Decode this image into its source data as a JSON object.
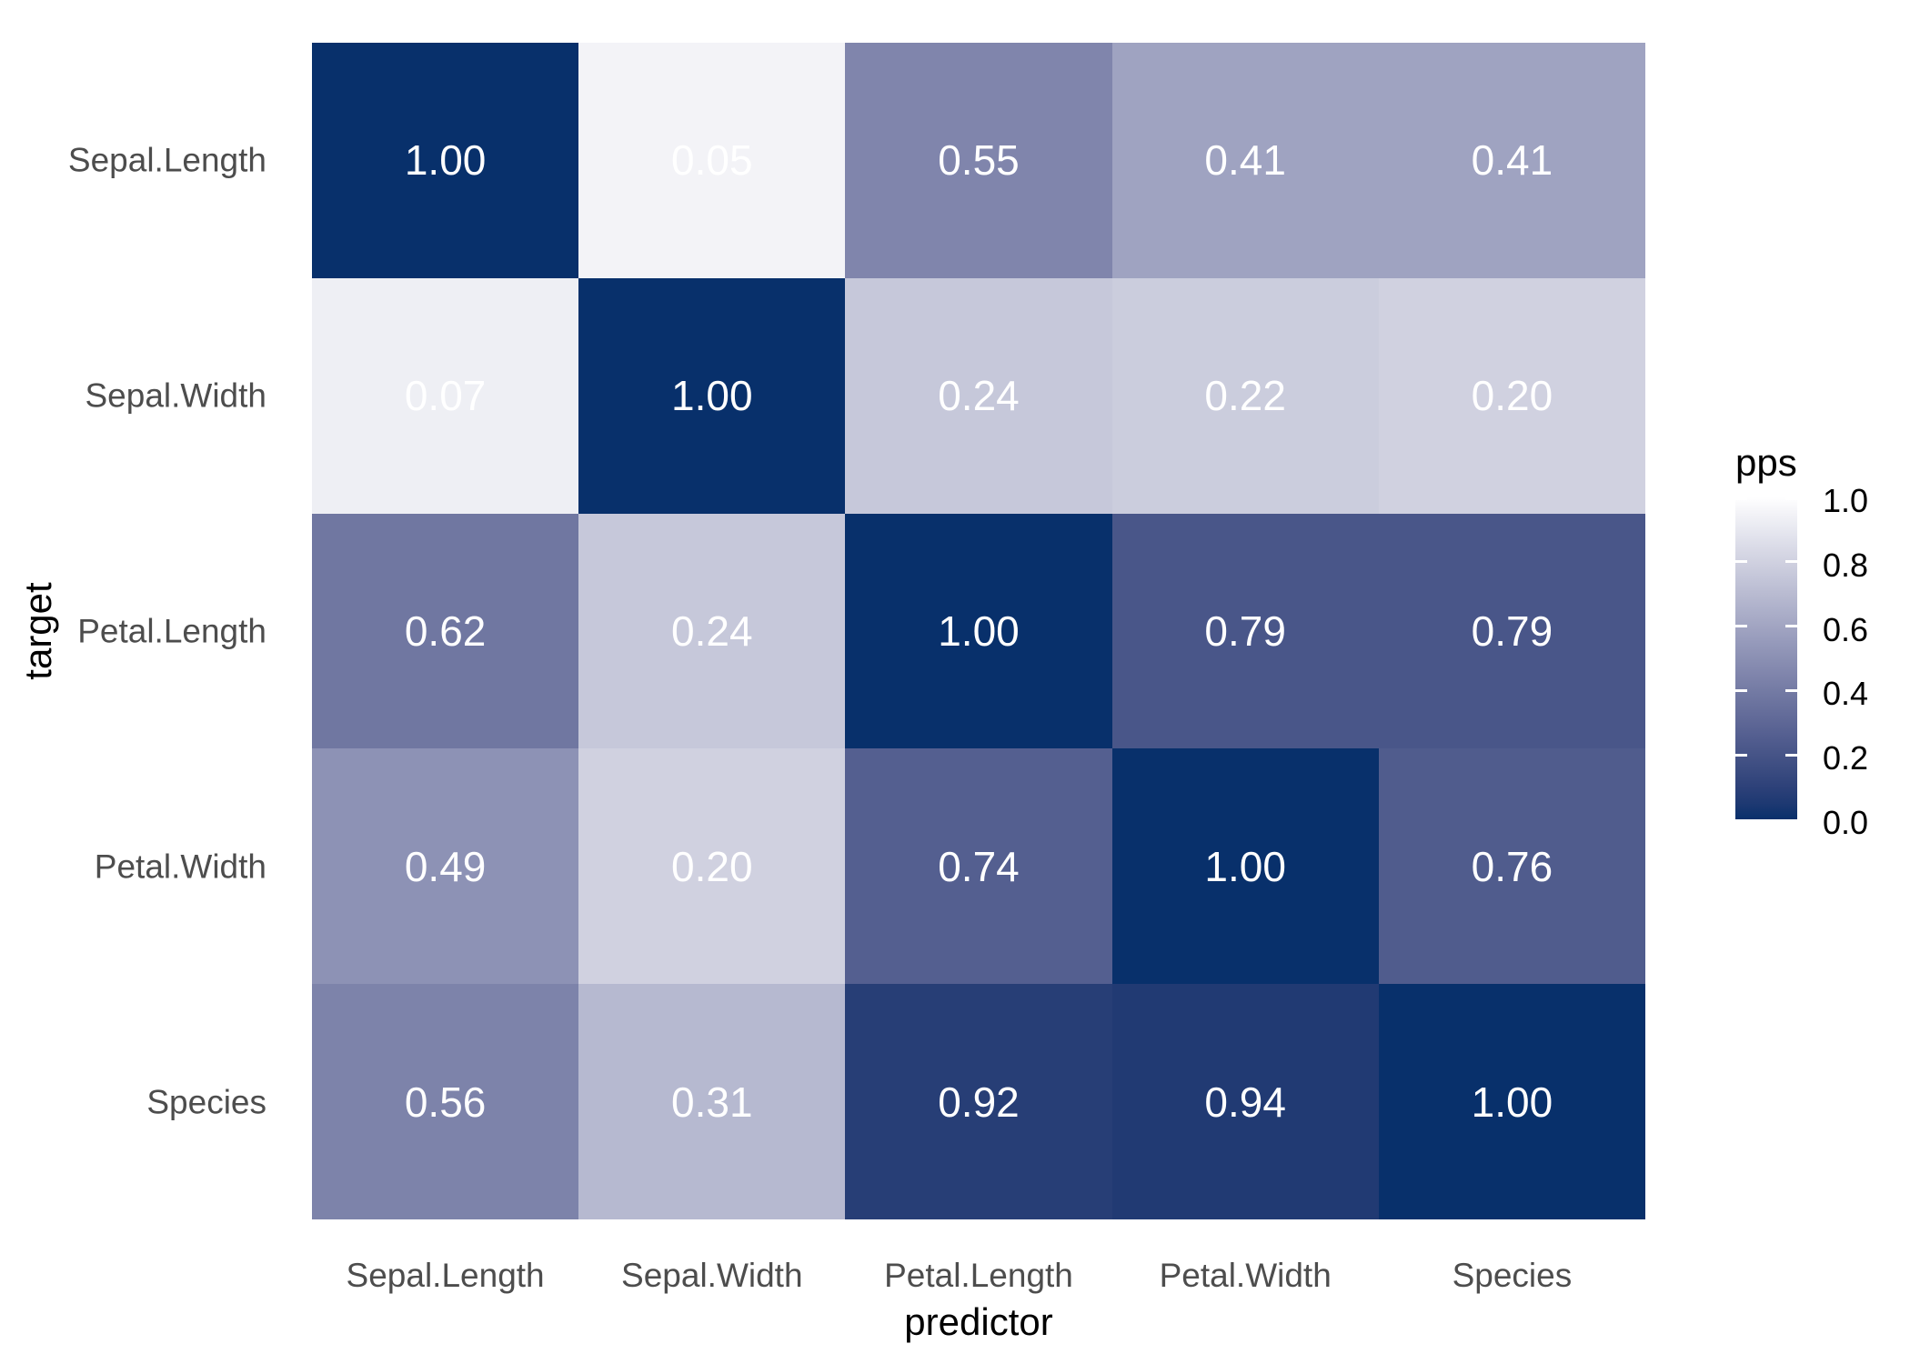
{
  "chart_data": {
    "type": "heatmap",
    "title": "",
    "xlabel": "predictor",
    "ylabel": "target",
    "x_categories": [
      "Sepal.Length",
      "Sepal.Width",
      "Petal.Length",
      "Petal.Width",
      "Species"
    ],
    "y_categories": [
      "Sepal.Length",
      "Sepal.Width",
      "Petal.Length",
      "Petal.Width",
      "Species"
    ],
    "values": [
      [
        1.0,
        0.05,
        0.55,
        0.41,
        0.41
      ],
      [
        0.07,
        1.0,
        0.24,
        0.22,
        0.2
      ],
      [
        0.62,
        0.24,
        1.0,
        0.79,
        0.79
      ],
      [
        0.49,
        0.2,
        0.74,
        1.0,
        0.76
      ],
      [
        0.56,
        0.31,
        0.92,
        0.94,
        1.0
      ]
    ],
    "value_decimals": 2,
    "legend": {
      "title": "pps",
      "tick_labels": [
        "1.0",
        "0.8",
        "0.6",
        "0.4",
        "0.2",
        "0.0"
      ],
      "tick_values": [
        1.0,
        0.8,
        0.6,
        0.4,
        0.2,
        0.0
      ],
      "range": [
        0.0,
        1.0
      ],
      "position": "right"
    },
    "colors": {
      "scale_low": "#FFFFFF",
      "scale_high": "#08306B",
      "cell_text": "#FFFFFF",
      "axis_text": "#4D4D4D",
      "axis_title": "#000000",
      "legend_text": "#000000",
      "background": "#FFFFFF"
    },
    "grid": false,
    "axis_ranges": {
      "x": "categorical",
      "y": "categorical"
    }
  }
}
